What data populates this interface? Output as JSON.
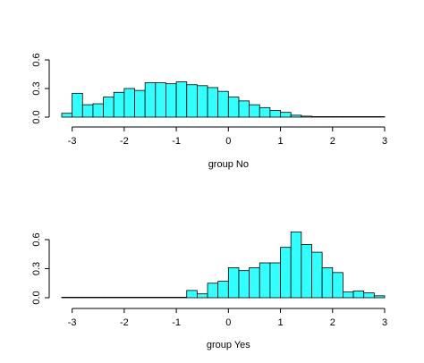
{
  "chart_data": [
    {
      "type": "bar",
      "subtype": "histogram",
      "xlabel": "group No",
      "ylabel": "",
      "bar_color": "#33ffff",
      "edge_color": "#000000",
      "xlim": [
        -3.2,
        3.0
      ],
      "ylim": [
        0,
        0.6
      ],
      "x_ticks": [
        "-3",
        "-2",
        "-1",
        "0",
        "1",
        "2",
        "3"
      ],
      "y_ticks": [
        "0.0",
        "0.3",
        "0.6"
      ],
      "bin_start": -3.2,
      "bin_width": 0.2,
      "values": [
        0.04,
        0.25,
        0.13,
        0.14,
        0.21,
        0.26,
        0.3,
        0.28,
        0.36,
        0.36,
        0.35,
        0.37,
        0.34,
        0.33,
        0.31,
        0.27,
        0.21,
        0.17,
        0.13,
        0.1,
        0.07,
        0.05,
        0.02,
        0.01,
        0.005,
        0.003,
        0.002,
        0.001,
        0.001,
        0.001,
        0.001
      ]
    },
    {
      "type": "bar",
      "subtype": "histogram",
      "xlabel": "group Yes",
      "ylabel": "",
      "bar_color": "#33ffff",
      "edge_color": "#000000",
      "xlim": [
        -3.2,
        3.0
      ],
      "ylim": [
        0,
        0.6
      ],
      "x_ticks": [
        "-3",
        "-2",
        "-1",
        "0",
        "1",
        "2",
        "3"
      ],
      "y_ticks": [
        "0.0",
        "0.3",
        "0.6"
      ],
      "bin_start": -3.2,
      "bin_width": 0.2,
      "values": [
        0.001,
        0.001,
        0.001,
        0.001,
        0.001,
        0.001,
        0.001,
        0.001,
        0.001,
        0.001,
        0.001,
        0.001,
        0.075,
        0.04,
        0.15,
        0.17,
        0.31,
        0.28,
        0.31,
        0.36,
        0.36,
        0.52,
        0.68,
        0.55,
        0.47,
        0.31,
        0.26,
        0.06,
        0.07,
        0.05,
        0.02
      ]
    }
  ]
}
